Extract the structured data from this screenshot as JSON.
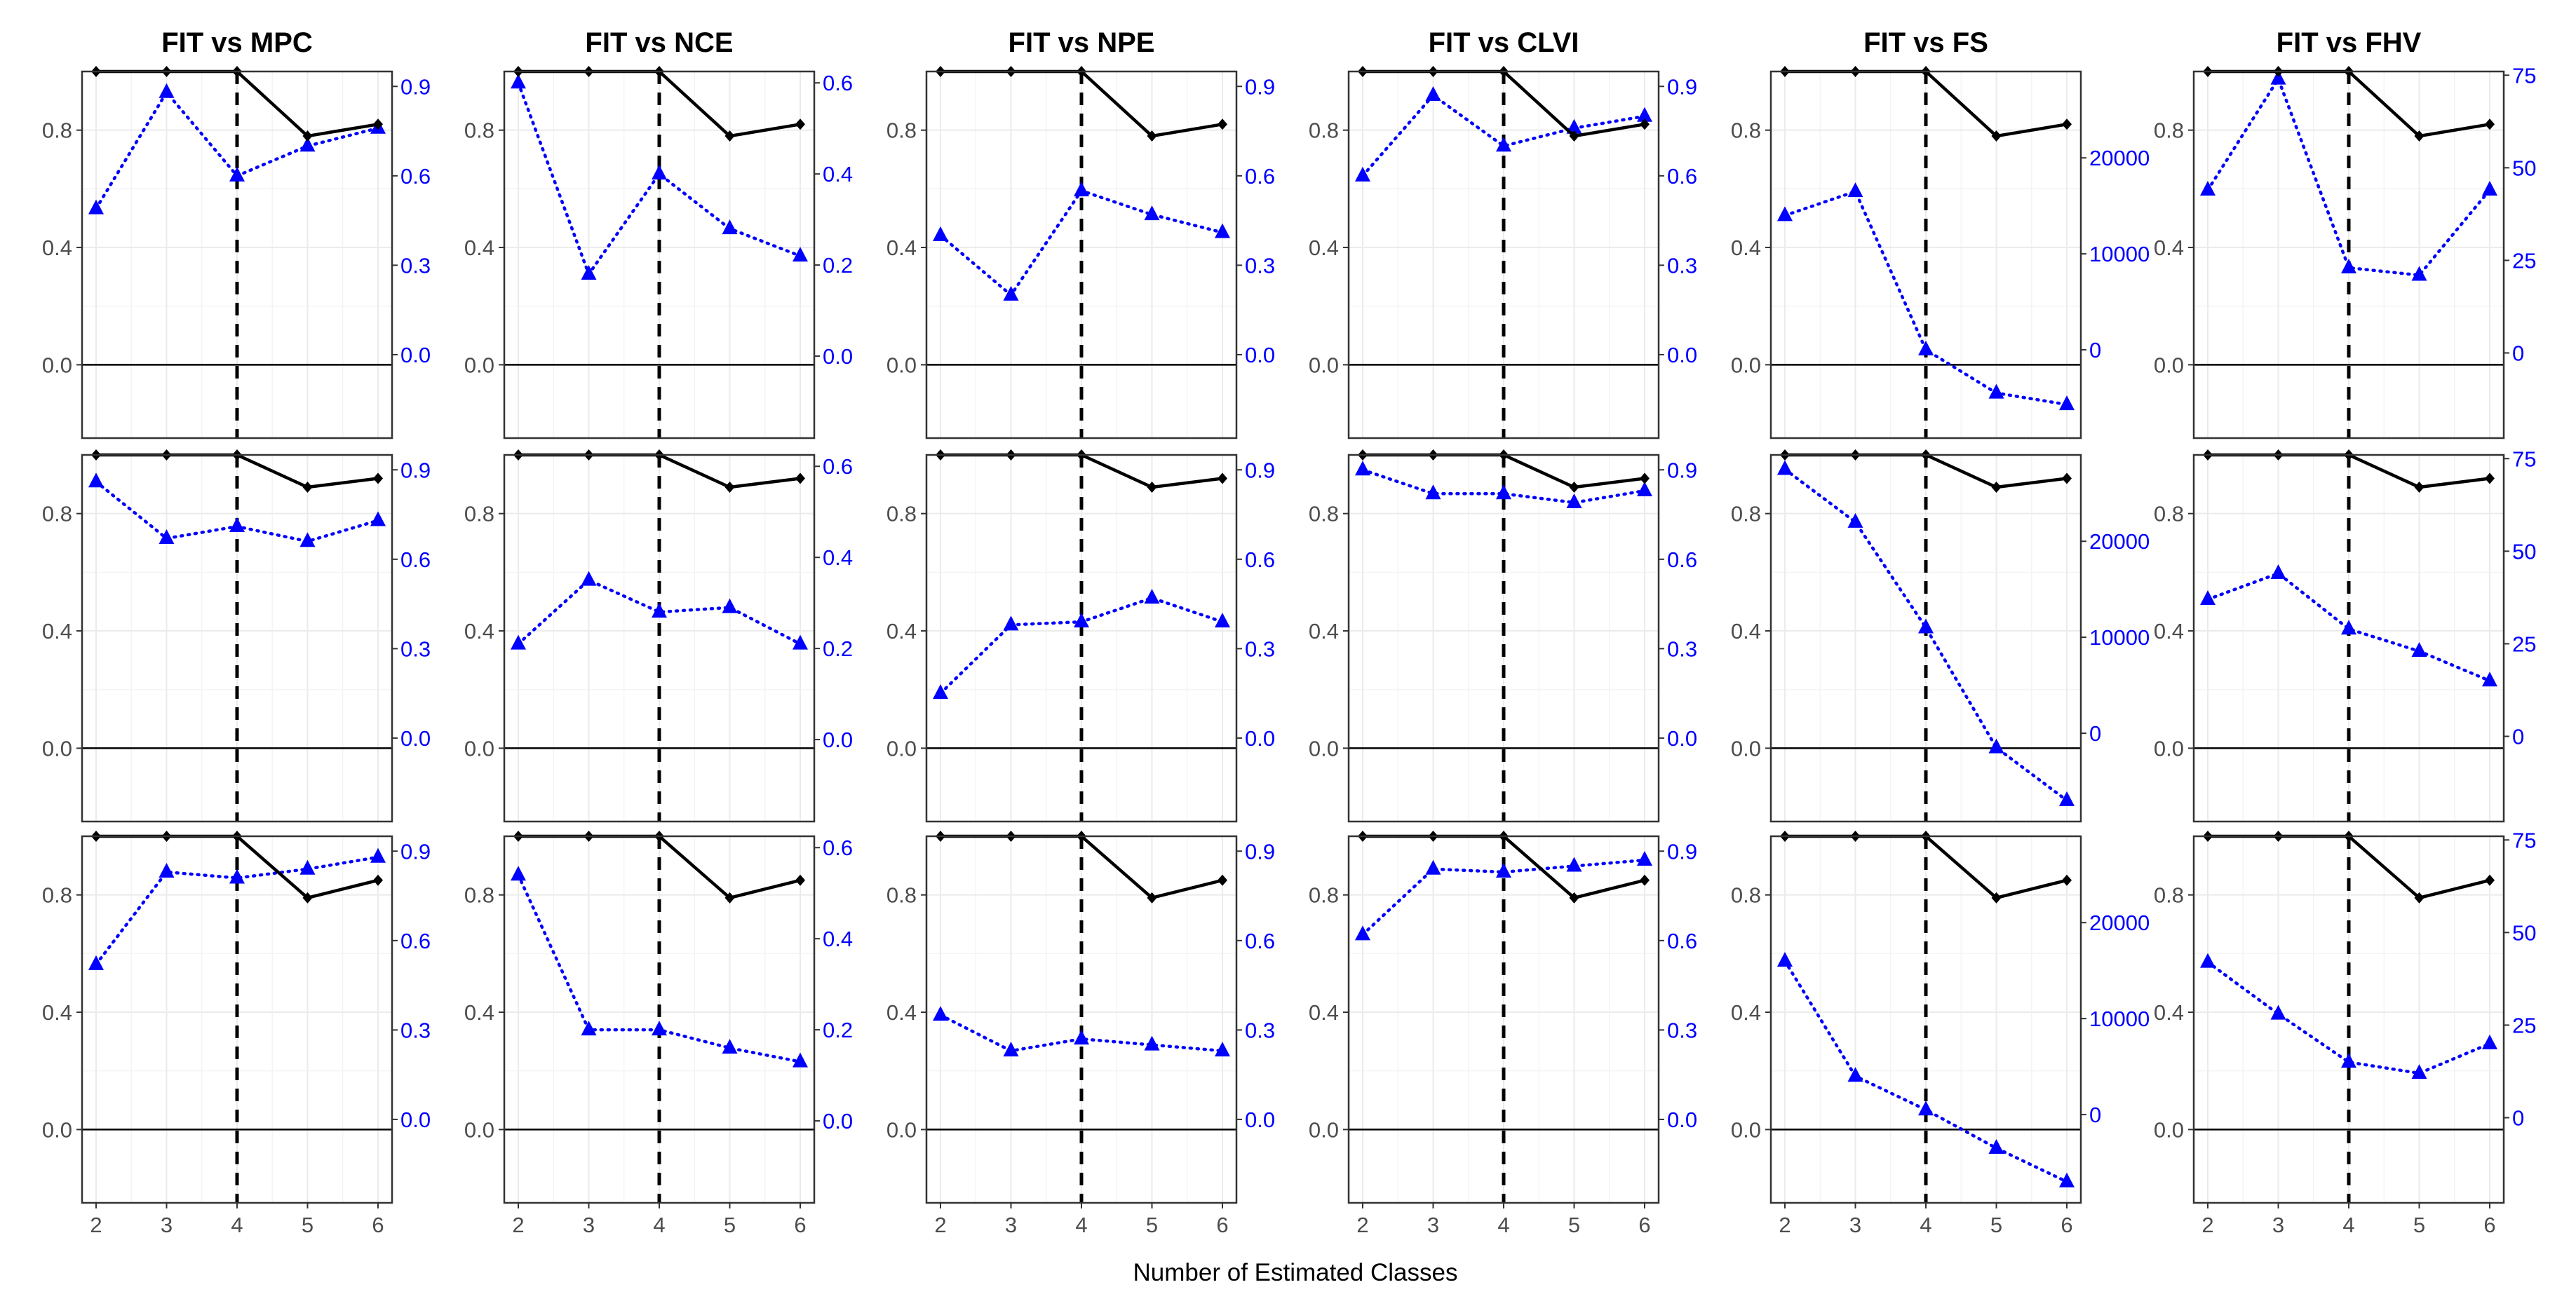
{
  "chart_data": {
    "type": "line",
    "xlabel": "Number of Estimated Classes",
    "x": [
      2,
      3,
      4,
      5,
      6
    ],
    "vline_x": 4,
    "left_axis": {
      "ylim": [
        -0.25,
        1.0
      ],
      "ticks": [
        "0.0",
        "0.4",
        "0.8"
      ],
      "tick_values": [
        0.0,
        0.4,
        0.8
      ]
    },
    "colors": {
      "fit": "#000000",
      "index": "#0000ff",
      "grid": "#ebebeb",
      "frame": "#333333"
    },
    "grid": true,
    "series_styles": {
      "fit": "solid-diamond",
      "index": "dotted-triangle"
    },
    "columns": [
      {
        "title": "FIT vs MPC",
        "right_ylim": [
          -0.28,
          0.95
        ],
        "right_ticks": [
          "0.0",
          "0.3",
          "0.6",
          "0.9"
        ],
        "right_tick_values": [
          0,
          0.3,
          0.6,
          0.9
        ]
      },
      {
        "title": "FIT vs NCE",
        "right_ylim": [
          -0.18,
          0.625
        ],
        "right_ticks": [
          "0.0",
          "0.2",
          "0.4",
          "0.6"
        ],
        "right_tick_values": [
          0,
          0.2,
          0.4,
          0.6
        ]
      },
      {
        "title": "FIT vs NPE",
        "right_ylim": [
          -0.28,
          0.95
        ],
        "right_ticks": [
          "0.0",
          "0.3",
          "0.6",
          "0.9"
        ],
        "right_tick_values": [
          0,
          0.3,
          0.6,
          0.9
        ]
      },
      {
        "title": "FIT vs CLVI",
        "right_ylim": [
          -0.28,
          0.95
        ],
        "right_ticks": [
          "0.0",
          "0.3",
          "0.6",
          "0.9"
        ],
        "right_tick_values": [
          0,
          0.3,
          0.6,
          0.9
        ]
      },
      {
        "title": "FIT vs FS",
        "right_ylim": [
          -9200,
          29000
        ],
        "right_ticks": [
          "0",
          "10000",
          "20000"
        ],
        "right_tick_values": [
          0,
          10000,
          20000
        ]
      },
      {
        "title": "FIT vs FHV",
        "right_ylim": [
          -23,
          76
        ],
        "right_ticks": [
          "0",
          "25",
          "50",
          "75"
        ],
        "right_tick_values": [
          0,
          25,
          50,
          75
        ]
      }
    ],
    "rows": [
      {
        "fit": [
          1.0,
          1.0,
          1.0,
          0.78,
          0.82
        ],
        "panels": [
          [
            0.49,
            0.88,
            0.6,
            0.7,
            0.76
          ],
          [
            0.6,
            0.18,
            0.4,
            0.28,
            0.22
          ],
          [
            0.4,
            0.2,
            0.55,
            0.47,
            0.41
          ],
          [
            0.6,
            0.87,
            0.7,
            0.76,
            0.8
          ],
          [
            14000,
            16500,
            0,
            -4500,
            -5700
          ],
          [
            44,
            74,
            23,
            21,
            44
          ]
        ]
      },
      {
        "fit": [
          1.0,
          1.0,
          1.0,
          0.89,
          0.92
        ],
        "panels": [
          [
            0.86,
            0.67,
            0.71,
            0.66,
            0.73
          ],
          [
            0.21,
            0.35,
            0.28,
            0.29,
            0.21
          ],
          [
            0.15,
            0.38,
            0.39,
            0.47,
            0.39
          ],
          [
            0.9,
            0.82,
            0.82,
            0.79,
            0.83
          ],
          [
            27500,
            22000,
            11000,
            -1500,
            -7000
          ],
          [
            37,
            44,
            29,
            23,
            15
          ]
        ]
      },
      {
        "fit": [
          1.0,
          1.0,
          1.0,
          0.79,
          0.85
        ],
        "panels": [
          [
            0.52,
            0.83,
            0.81,
            0.84,
            0.88
          ],
          [
            0.54,
            0.2,
            0.2,
            0.16,
            0.13
          ],
          [
            0.35,
            0.23,
            0.27,
            0.25,
            0.23
          ],
          [
            0.62,
            0.84,
            0.83,
            0.85,
            0.87
          ],
          [
            16000,
            4000,
            500,
            -3500,
            -7000
          ],
          [
            42,
            28,
            15,
            12,
            20
          ]
        ]
      }
    ]
  }
}
